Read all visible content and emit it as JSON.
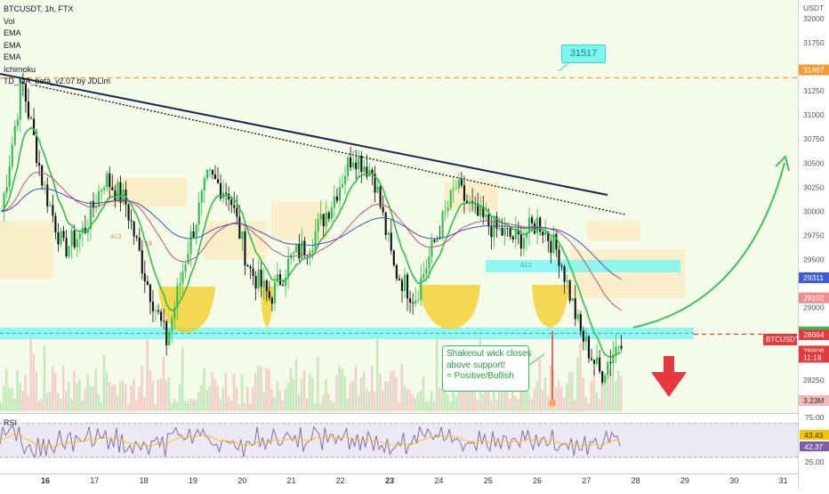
{
  "header": {
    "symbol_line": "BTCUSDT, 1h, FTX",
    "indicators": [
      "Vol",
      "EMA",
      "EMA",
      "EMA",
      "Ichimoku",
      "TD_MA_beta_v2.07 by JDLim"
    ]
  },
  "price_axis": {
    "currency": "USDT",
    "ticks": [
      "32000",
      "31750",
      "31467",
      "31250",
      "31000",
      "30750",
      "30500",
      "30250",
      "30000",
      "29750",
      "29500",
      "29311",
      "29102",
      "29000",
      "28750",
      "28664",
      "28606",
      "11:19",
      "28250",
      "3.23M"
    ],
    "tick_values": [
      32000,
      31750,
      31467,
      31250,
      31000,
      30750,
      30500,
      30250,
      30000,
      29750,
      29500,
      29311,
      29102,
      29000,
      28750,
      28664,
      28606,
      null,
      28250,
      null
    ],
    "badges": [
      {
        "text": "29311",
        "color": "#3b5bdb"
      },
      {
        "text": "29102",
        "color": "#f28b8b"
      },
      {
        "text": "28750",
        "color": "#2fbf4a"
      },
      {
        "text": "28664",
        "color": "#e23b3b"
      },
      {
        "text": "28606",
        "color": "#e23b3b"
      },
      {
        "text": "11:19",
        "color": "#e23b3b"
      },
      {
        "text": "3.23M",
        "color": "#f2b8b8"
      },
      {
        "text": "31467",
        "color": "#f39c33"
      }
    ],
    "symbol_badge": "BTCUSDT"
  },
  "time_axis": {
    "labels": [
      "16",
      "17",
      "18",
      "19",
      "20",
      "21",
      "22",
      "23",
      "24",
      "25",
      "26",
      "27",
      "28",
      "29",
      "30",
      "31"
    ]
  },
  "rsi": {
    "label": "RSI",
    "ticks": [
      "75.00",
      "43.43",
      "42.37",
      "25.00"
    ]
  },
  "annotations": {
    "target_label": "31517",
    "callout_lines": [
      "Shakeout wick closes",
      "above support!",
      "= Positive/Bullish"
    ],
    "small_labels": [
      "13",
      "A13",
      "A12"
    ]
  },
  "colors": {
    "up": "#2fbf4a",
    "down": "#111111",
    "support": "#7ff5f0",
    "resistance": "#f39c33",
    "arrow_up": "#3ac459",
    "arrow_down": "#e8373f",
    "highlight": "#f5c400",
    "cloud": "#ffe7b8"
  },
  "chart_data": {
    "type": "candlestick",
    "x_labels": [
      "16",
      "17",
      "18",
      "19",
      "20",
      "21",
      "22",
      "23",
      "24",
      "25",
      "26",
      "27",
      "28",
      "29",
      "30",
      "31"
    ],
    "ylim": [
      28000,
      32100
    ],
    "levels": {
      "resistance_dashed": 31467,
      "support_zone": [
        28580,
        28720
      ],
      "upper_zone": [
        29400,
        29530
      ],
      "last_price": 28606
    },
    "price_path": [
      30000,
      31350,
      30300,
      29600,
      29800,
      30350,
      30100,
      29300,
      28650,
      29600,
      30350,
      30200,
      29400,
      29100,
      29500,
      29700,
      30100,
      30600,
      30400,
      29400,
      29100,
      29700,
      30250,
      29950,
      29800,
      29700,
      29900,
      29550,
      28750,
      28300,
      28700
    ]
  }
}
